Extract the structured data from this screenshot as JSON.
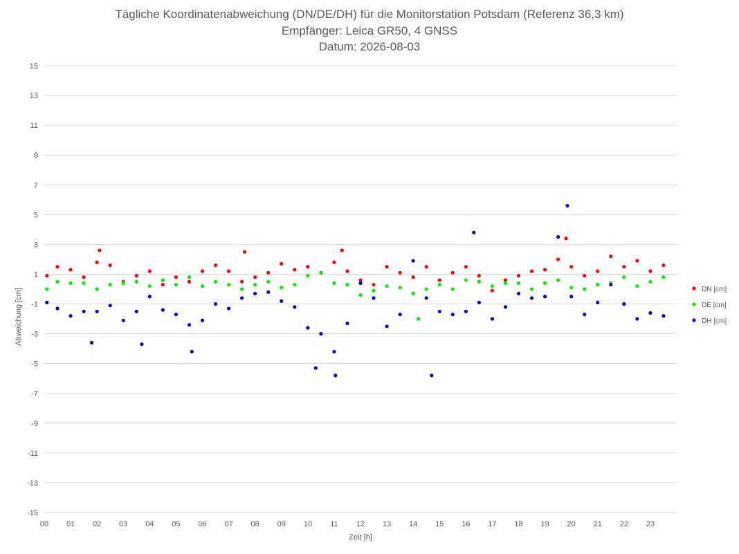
{
  "chart_data": {
    "type": "scatter",
    "title": "Tägliche Koordinatenabweichung (DN/DE/DH) für die Monitorstation Potsdam (Referenz 36,3 km)",
    "subtitle": "Empfänger: Leica GR50, 4 GNSS",
    "date_label": "Datum: 2026-08-03",
    "xlabel": "Zeit [h]",
    "ylabel": "Abweichung [cm]",
    "xlim": [
      0,
      24
    ],
    "ylim": [
      -15,
      15
    ],
    "x_ticks": [
      0,
      1,
      2,
      3,
      4,
      5,
      6,
      7,
      8,
      9,
      10,
      11,
      12,
      13,
      14,
      15,
      16,
      17,
      18,
      19,
      20,
      21,
      22,
      23
    ],
    "x_tick_labels": [
      "00",
      "01",
      "02",
      "03",
      "04",
      "05",
      "06",
      "07",
      "08",
      "09",
      "10",
      "11",
      "12",
      "13",
      "14",
      "15",
      "16",
      "17",
      "18",
      "19",
      "20",
      "21",
      "22",
      "23"
    ],
    "y_ticks": [
      15,
      13,
      11,
      9,
      7,
      5,
      3,
      1,
      -1,
      -3,
      -5,
      -7,
      -9,
      -11,
      -13,
      -15
    ],
    "y_tick_labels": [
      "15",
      "13",
      "11",
      "9",
      "7",
      "5",
      "3",
      "1",
      "-1",
      "-3",
      "-5",
      "-7",
      "-9",
      "-11",
      "-13",
      "-15"
    ],
    "grid": "horizontal",
    "legend_position": "right",
    "series": [
      {
        "name": "DN [cm]",
        "color": "#ff0000",
        "x": [
          0.1,
          0.5,
          1.0,
          1.5,
          2.0,
          2.1,
          2.5,
          3.0,
          3.5,
          4.0,
          4.5,
          5.0,
          5.5,
          6.0,
          6.5,
          7.0,
          7.5,
          7.6,
          8.0,
          8.5,
          9.0,
          9.5,
          10.0,
          10.5,
          11.0,
          11.3,
          11.5,
          12.0,
          12.5,
          13.0,
          13.5,
          14.0,
          14.5,
          15.0,
          15.5,
          16.0,
          16.5,
          17.0,
          17.5,
          18.0,
          18.5,
          19.0,
          19.5,
          19.8,
          20.0,
          20.5,
          21.0,
          21.5,
          22.0,
          22.5,
          23.0,
          23.5
        ],
        "y": [
          0.9,
          1.5,
          1.3,
          0.8,
          1.8,
          2.6,
          1.6,
          0.5,
          0.9,
          1.2,
          0.3,
          0.8,
          0.5,
          1.2,
          1.6,
          1.2,
          0.5,
          2.5,
          0.8,
          1.1,
          1.7,
          1.3,
          1.5,
          1.1,
          1.8,
          2.6,
          1.2,
          0.6,
          0.3,
          1.5,
          1.1,
          0.8,
          1.5,
          0.6,
          1.1,
          1.5,
          0.9,
          -0.1,
          0.6,
          0.9,
          1.2,
          1.3,
          2.0,
          3.4,
          1.5,
          0.9,
          1.2,
          2.2,
          1.5,
          1.9,
          1.2,
          1.6
        ]
      },
      {
        "name": "DE [cm]",
        "color": "#00ee00",
        "x": [
          0.1,
          0.5,
          1.0,
          1.5,
          2.0,
          2.5,
          3.0,
          3.5,
          4.0,
          4.5,
          5.0,
          5.5,
          6.0,
          6.5,
          7.0,
          7.5,
          8.0,
          8.5,
          9.0,
          9.5,
          10.0,
          10.5,
          11.0,
          11.5,
          12.0,
          12.5,
          13.0,
          13.5,
          14.0,
          14.2,
          14.5,
          15.0,
          15.5,
          16.0,
          16.5,
          17.0,
          17.5,
          18.0,
          18.5,
          19.0,
          19.5,
          20.0,
          20.5,
          21.0,
          21.5,
          22.0,
          22.5,
          23.0,
          23.5
        ],
        "y": [
          0.0,
          0.5,
          0.4,
          0.4,
          0.0,
          0.3,
          0.4,
          0.5,
          0.2,
          0.6,
          0.3,
          0.8,
          0.2,
          0.5,
          0.3,
          0.0,
          0.3,
          0.5,
          0.1,
          0.3,
          0.9,
          1.1,
          0.4,
          0.3,
          -0.4,
          -0.1,
          0.2,
          0.1,
          -0.3,
          -2.0,
          0.0,
          0.3,
          0.0,
          0.6,
          0.5,
          0.2,
          0.4,
          0.4,
          0.0,
          0.4,
          0.6,
          0.1,
          0.0,
          0.3,
          0.4,
          0.8,
          0.2,
          0.5,
          0.8
        ]
      },
      {
        "name": "DH [cm]",
        "color": "#0000dd",
        "x": [
          0.1,
          0.5,
          1.0,
          1.5,
          1.8,
          2.0,
          2.5,
          3.0,
          3.5,
          3.7,
          4.0,
          4.5,
          5.0,
          5.5,
          5.6,
          6.0,
          6.5,
          7.0,
          7.5,
          8.0,
          8.5,
          9.0,
          9.5,
          10.0,
          10.3,
          10.5,
          11.0,
          11.05,
          11.5,
          12.0,
          12.5,
          13.0,
          13.5,
          14.0,
          14.5,
          14.7,
          15.0,
          15.5,
          16.0,
          16.3,
          16.5,
          17.0,
          17.5,
          18.0,
          18.5,
          19.0,
          19.5,
          19.85,
          20.0,
          20.5,
          21.0,
          21.5,
          22.0,
          22.5,
          23.0,
          23.5
        ],
        "y": [
          -0.9,
          -1.3,
          -1.8,
          -1.5,
          -3.6,
          -1.5,
          -1.1,
          -2.1,
          -1.5,
          -3.7,
          -0.5,
          -1.4,
          -1.7,
          -2.4,
          -4.2,
          -2.1,
          -1.0,
          -1.3,
          -0.6,
          -0.3,
          -0.2,
          -0.8,
          -1.2,
          -2.6,
          -5.3,
          -3.0,
          -4.2,
          -5.8,
          -2.3,
          0.4,
          -0.6,
          -2.5,
          -1.7,
          1.9,
          -0.6,
          -5.8,
          -1.5,
          -1.7,
          -1.5,
          3.8,
          -0.9,
          -2.0,
          -1.2,
          -0.3,
          -0.6,
          -0.5,
          3.5,
          5.6,
          -0.5,
          -1.7,
          -0.9,
          0.3,
          -1.0,
          -2.0,
          -1.6,
          -1.8
        ]
      }
    ]
  }
}
